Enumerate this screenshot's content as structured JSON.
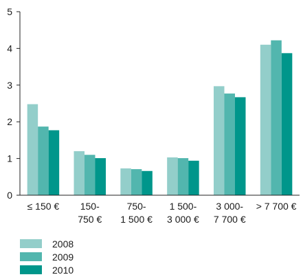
{
  "chart_data": {
    "type": "bar",
    "title": "",
    "xlabel": "",
    "ylabel": "",
    "ylim": [
      0,
      5
    ],
    "yticks": [
      0,
      1,
      2,
      3,
      4,
      5
    ],
    "grid": false,
    "legend_position": "bottom-left",
    "categories": [
      [
        "≤ 150 €"
      ],
      [
        "150-",
        "750 €"
      ],
      [
        "750-",
        "1 500 €"
      ],
      [
        "1 500-",
        "3 000 €"
      ],
      [
        "3 000-",
        "7 700 €"
      ],
      [
        "> 7 700 €"
      ]
    ],
    "series": [
      {
        "name": "2008",
        "color": "#93ceca",
        "values": [
          2.48,
          1.2,
          0.73,
          1.03,
          2.97,
          4.1
        ]
      },
      {
        "name": "2009",
        "color": "#52b6ae",
        "values": [
          1.87,
          1.1,
          0.71,
          1.01,
          2.77,
          4.22
        ]
      },
      {
        "name": "2010",
        "color": "#00968b",
        "values": [
          1.77,
          1.01,
          0.66,
          0.94,
          2.67,
          3.87
        ]
      }
    ]
  }
}
